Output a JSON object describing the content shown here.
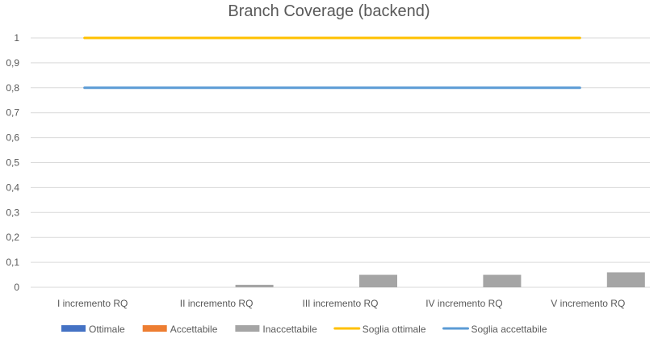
{
  "chart_data": {
    "type": "bar",
    "title": "Branch Coverage (backend)",
    "categories": [
      "I incremento RQ",
      "II incremento RQ",
      "III incremento RQ",
      "IV incremento RQ",
      "V incremento RQ"
    ],
    "ylim": [
      0,
      1
    ],
    "yticks": [
      0,
      0.1,
      0.2,
      0.3,
      0.4,
      0.5,
      0.6,
      0.7,
      0.8,
      0.9,
      1
    ],
    "ytick_labels": [
      "0",
      "0,1",
      "0,2",
      "0,3",
      "0,4",
      "0,5",
      "0,6",
      "0,7",
      "0,8",
      "0,9",
      "1"
    ],
    "grid": true,
    "legend_position": "bottom",
    "series": [
      {
        "name": "Ottimale",
        "kind": "bar",
        "color": "#4472C4",
        "values": [
          0,
          0,
          0,
          0,
          0
        ]
      },
      {
        "name": "Accettabile",
        "kind": "bar",
        "color": "#ED7D31",
        "values": [
          0,
          0,
          0,
          0,
          0
        ]
      },
      {
        "name": "Inaccettabile",
        "kind": "bar",
        "color": "#A5A5A5",
        "values": [
          0,
          0.01,
          0.05,
          0.05,
          0.06
        ]
      },
      {
        "name": "Soglia ottimale",
        "kind": "line",
        "color": "#FFC000",
        "values": [
          1,
          1,
          1,
          1,
          1
        ]
      },
      {
        "name": "Soglia accettabile",
        "kind": "line",
        "color": "#5B9BD5",
        "values": [
          0.8,
          0.8,
          0.8,
          0.8,
          0.8
        ]
      }
    ]
  }
}
